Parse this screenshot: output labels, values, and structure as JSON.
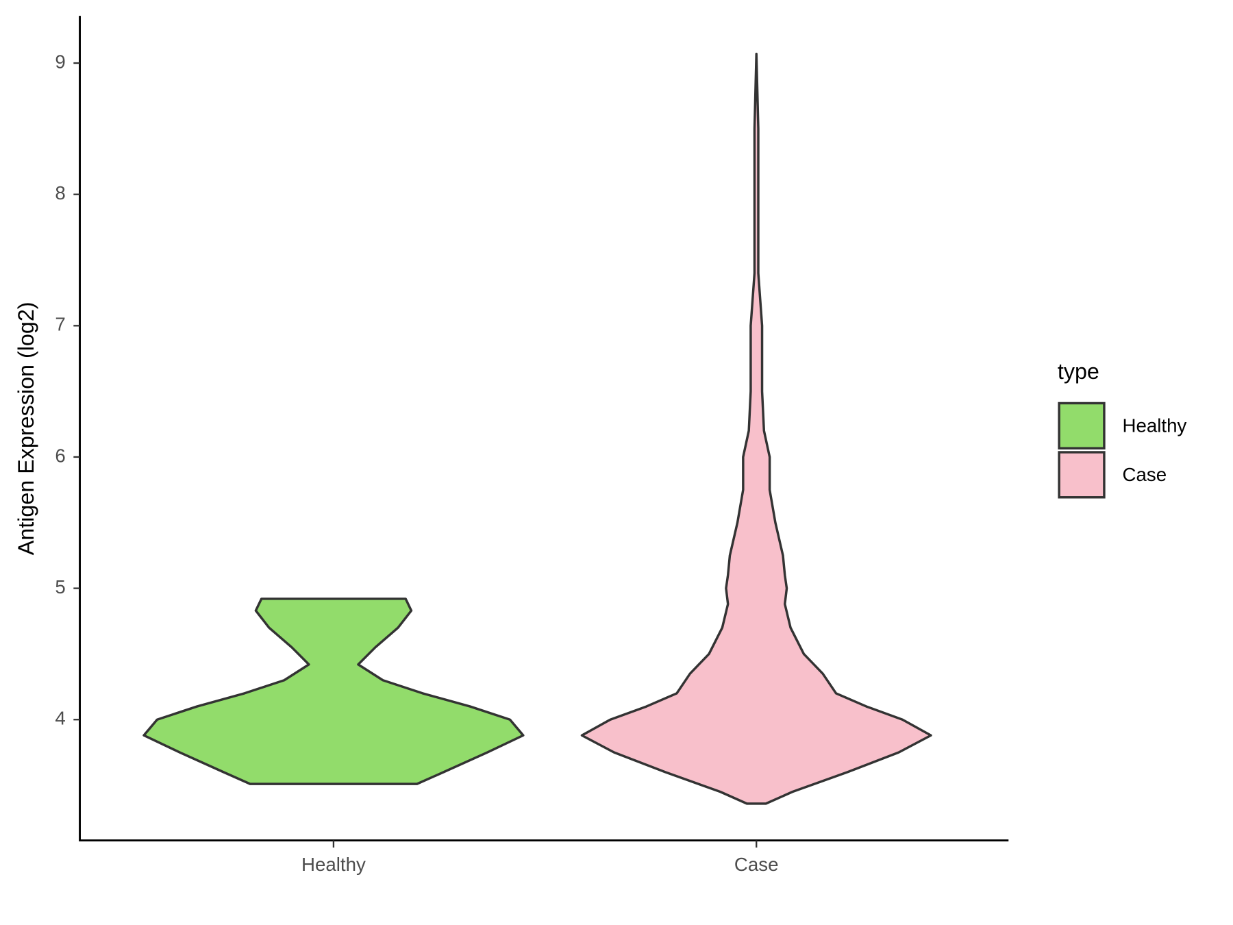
{
  "chart_data": {
    "type": "violin",
    "ylabel": "Antigen Expression (log2)",
    "categories": [
      "Healthy",
      "Case"
    ],
    "ylim": [
      3.08,
      9.36
    ],
    "yticks": [
      4,
      5,
      6,
      7,
      8,
      9
    ],
    "legend_title": "type",
    "legend_position": "right",
    "series": [
      {
        "name": "Healthy",
        "color": "#92dc6b",
        "y": [
          3.51,
          3.6,
          3.75,
          3.88,
          4.0,
          4.1,
          4.2,
          4.3,
          4.42,
          4.55,
          4.7,
          4.83,
          4.92
        ],
        "density": [
          0.44,
          0.58,
          0.81,
          1.0,
          0.93,
          0.72,
          0.47,
          0.26,
          0.13,
          0.22,
          0.34,
          0.41,
          0.38
        ]
      },
      {
        "name": "Case",
        "color": "#f8c0cb",
        "y": [
          3.36,
          3.45,
          3.6,
          3.75,
          3.88,
          4.0,
          4.1,
          4.2,
          4.35,
          4.5,
          4.7,
          4.88,
          5.0,
          5.1,
          5.25,
          5.5,
          5.75,
          6.0,
          6.2,
          6.5,
          6.8,
          7.0,
          7.2,
          7.4,
          7.6,
          8.0,
          8.5,
          9.07
        ],
        "density": [
          0.05,
          0.19,
          0.48,
          0.75,
          0.92,
          0.77,
          0.58,
          0.42,
          0.35,
          0.25,
          0.18,
          0.15,
          0.16,
          0.15,
          0.14,
          0.1,
          0.07,
          0.07,
          0.04,
          0.03,
          0.03,
          0.03,
          0.02,
          0.01,
          0.01,
          0.01,
          0.01,
          0
        ]
      }
    ]
  }
}
